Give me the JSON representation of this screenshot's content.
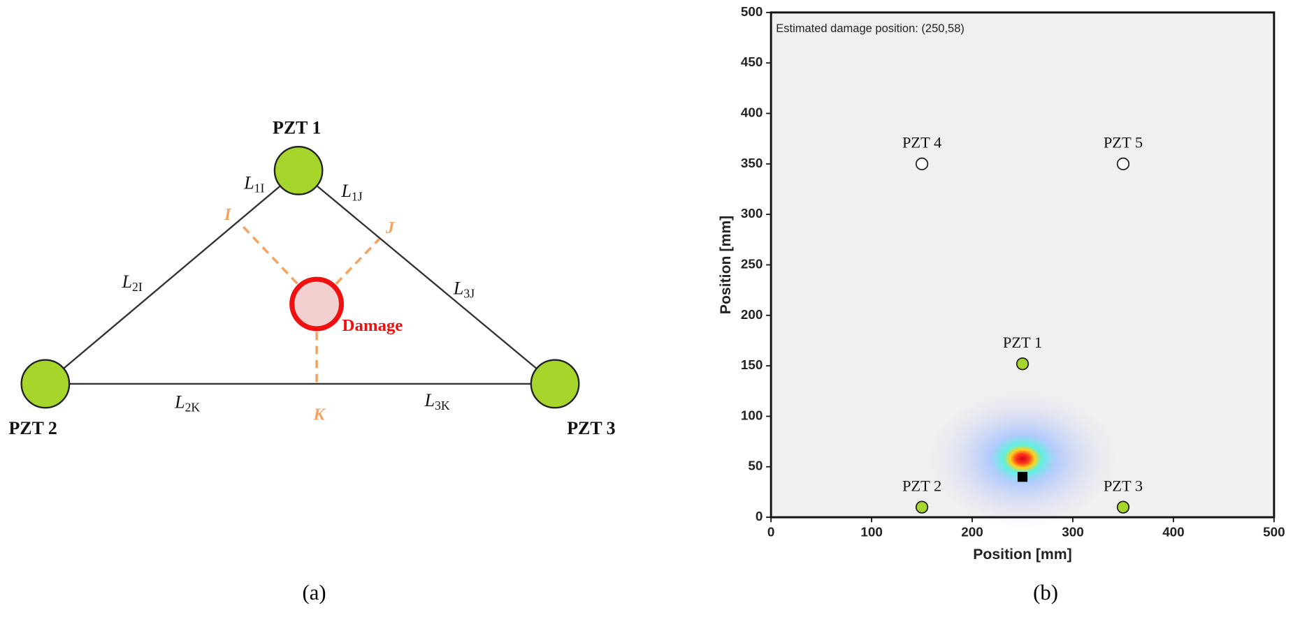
{
  "diagram": {
    "nodes": [
      {
        "label": "PZT 1"
      },
      {
        "label": "PZT 2"
      },
      {
        "label": "PZT 3"
      }
    ],
    "damage": "Damage",
    "points": [
      "I",
      "J",
      "K"
    ],
    "edges": [
      {
        "main": "L",
        "sub": "1I"
      },
      {
        "main": "L",
        "sub": "1J"
      },
      {
        "main": "L",
        "sub": "2I"
      },
      {
        "main": "L",
        "sub": "3J"
      },
      {
        "main": "L",
        "sub": "2K"
      },
      {
        "main": "L",
        "sub": "3K"
      }
    ],
    "captions": [
      "(a)",
      "(b)"
    ]
  },
  "chart_data": {
    "type": "scatter",
    "annotation": "Estimated damage position: (250,58)",
    "xlabel": "Position [mm]",
    "ylabel": "Position [mm]",
    "xlim": [
      0,
      500
    ],
    "ylim": [
      0,
      500
    ],
    "xticks": [
      0,
      100,
      200,
      300,
      400,
      500
    ],
    "yticks": [
      0,
      50,
      100,
      150,
      200,
      250,
      300,
      350,
      400,
      450,
      500
    ],
    "series": [
      {
        "name": "PZT 1",
        "color": "#a6d62c",
        "x": [
          250
        ],
        "y": [
          152
        ]
      },
      {
        "name": "PZT 2",
        "color": "#a6d62c",
        "x": [
          150
        ],
        "y": [
          10
        ]
      },
      {
        "name": "PZT 3",
        "color": "#a6d62c",
        "x": [
          350
        ],
        "y": [
          10
        ]
      },
      {
        "name": "PZT 4",
        "color": "#ffffff",
        "x": [
          150
        ],
        "y": [
          350
        ]
      },
      {
        "name": "PZT 5",
        "color": "#ffffff",
        "x": [
          350
        ],
        "y": [
          350
        ]
      }
    ],
    "damage_estimate": {
      "x": 250,
      "y": 58
    },
    "damage_marker": {
      "x": 250,
      "y": 40,
      "color": "#000000"
    }
  }
}
